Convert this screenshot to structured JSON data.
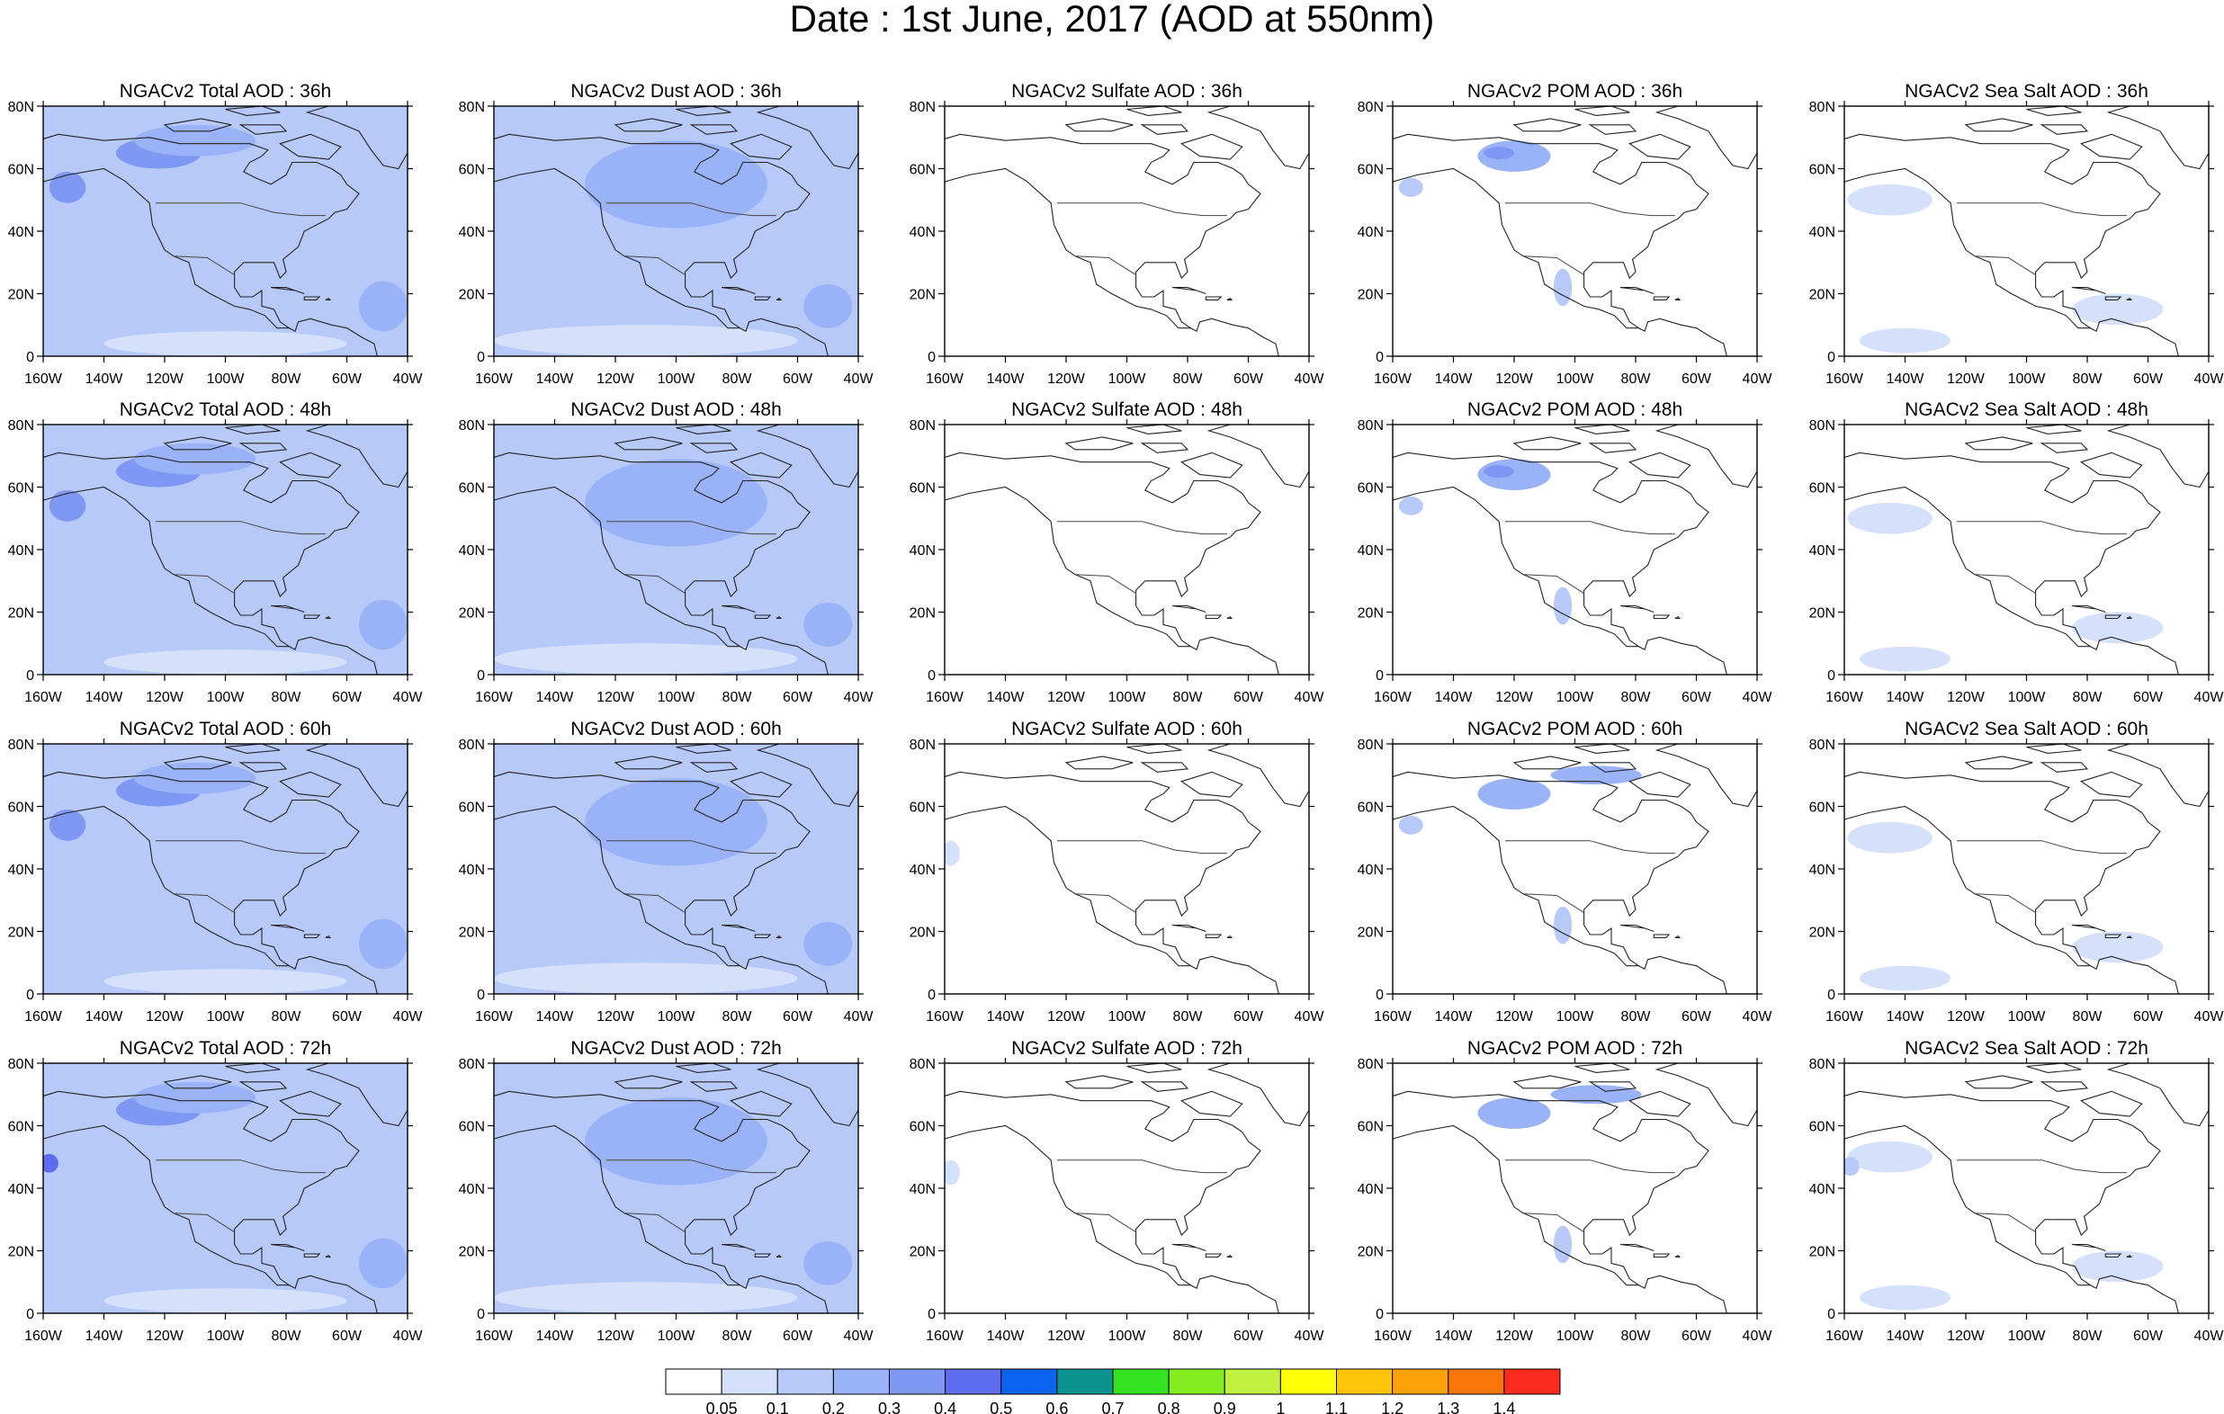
{
  "title": "Date : 1st June, 2017 (AOD at 550nm)",
  "x_ticks": [
    "160W",
    "140W",
    "120W",
    "100W",
    "80W",
    "60W",
    "40W"
  ],
  "y_ticks": [
    "80N",
    "60N",
    "40N",
    "20N",
    "0"
  ],
  "forecast_hours": [
    "36h",
    "48h",
    "60h",
    "72h"
  ],
  "panel_titles": [
    [
      "NGACv2 Total AOD : 36h",
      "NGACv2 Dust AOD : 36h",
      "NGACv2 Sulfate AOD : 36h",
      "NGACv2 POM AOD : 36h",
      "NGACv2 Sea Salt AOD : 36h"
    ],
    [
      "NGACv2 Total AOD : 48h",
      "NGACv2 Dust AOD : 48h",
      "NGACv2 Sulfate AOD : 48h",
      "NGACv2 POM AOD : 48h",
      "NGACv2 Sea Salt AOD : 48h"
    ],
    [
      "NGACv2 Total AOD : 60h",
      "NGACv2 Dust AOD : 60h",
      "NGACv2 Sulfate AOD : 60h",
      "NGACv2 POM AOD : 60h",
      "NGACv2 Sea Salt AOD : 60h"
    ],
    [
      "NGACv2 Total AOD : 72h",
      "NGACv2 Dust AOD : 72h",
      "NGACv2 Sulfate AOD : 72h",
      "NGACv2 POM AOD : 72h",
      "NGACv2 Sea Salt  AOD : 72h"
    ]
  ],
  "colorbar": {
    "labels": [
      "0.05",
      "0.1",
      "0.2",
      "0.3",
      "0.4",
      "0.5",
      "0.6",
      "0.7",
      "0.8",
      "0.9",
      "1",
      "1.1",
      "1.2",
      "1.3",
      "1.4"
    ],
    "colors": [
      "#ffffff",
      "#d5e0fb",
      "#b7c9f9",
      "#9ab3f8",
      "#7f98f3",
      "#5f6df0",
      "#0a64f0",
      "#0b948f",
      "#34e31f",
      "#86ed1e",
      "#c2f23f",
      "#ffff05",
      "#fdc40a",
      "#fda208",
      "#fb7608",
      "#fb2b1e"
    ]
  },
  "chart_data": {
    "type": "heatmap",
    "lon_range": [
      -160,
      -40
    ],
    "lat_range": [
      0,
      80
    ],
    "variables": [
      "Total AOD",
      "Dust AOD",
      "Sulfate AOD",
      "POM AOD",
      "Sea Salt AOD"
    ],
    "levels": [
      0.05,
      0.1,
      0.2,
      0.3,
      0.4,
      0.5,
      0.6,
      0.7,
      0.8,
      0.9,
      1,
      1.1,
      1.2,
      1.3,
      1.4
    ],
    "background_level_by_variable": [
      0.1,
      0.1,
      0.0,
      0.0,
      0.0
    ],
    "features": [
      {
        "var": 0,
        "hours": [
          36,
          48,
          60,
          72
        ],
        "lon": -122,
        "lat": 65,
        "rlon": 14,
        "rlat": 5,
        "level": 0.3
      },
      {
        "var": 0,
        "hours": [
          36,
          48,
          60,
          72
        ],
        "lon": -110,
        "lat": 69,
        "rlon": 20,
        "rlat": 5,
        "level": 0.2
      },
      {
        "var": 0,
        "hours": [
          36,
          48,
          60
        ],
        "lon": -152,
        "lat": 54,
        "rlon": 6,
        "rlat": 5,
        "level": 0.3
      },
      {
        "var": 0,
        "hours": [
          36,
          48,
          60,
          72
        ],
        "lon": -48,
        "lat": 16,
        "rlon": 8,
        "rlat": 8,
        "level": 0.2
      },
      {
        "var": 0,
        "hours": [
          36,
          48,
          60,
          72
        ],
        "lon": -100,
        "lat": 4,
        "rlon": 40,
        "rlat": 4,
        "level": 0.05
      },
      {
        "var": 0,
        "hours": [
          72
        ],
        "lon": -158,
        "lat": 48,
        "rlon": 3,
        "rlat": 3,
        "level": 0.4
      },
      {
        "var": 1,
        "hours": [
          36,
          48,
          60,
          72
        ],
        "lon": -110,
        "lat": 5,
        "rlon": 50,
        "rlat": 5,
        "level": 0.05
      },
      {
        "var": 1,
        "hours": [
          36,
          48,
          60,
          72
        ],
        "lon": -50,
        "lat": 16,
        "rlon": 8,
        "rlat": 7,
        "level": 0.2
      },
      {
        "var": 1,
        "hours": [
          36,
          48,
          60,
          72
        ],
        "lon": -100,
        "lat": 55,
        "rlon": 30,
        "rlat": 14,
        "level": 0.2
      },
      {
        "var": 2,
        "hours": [
          60,
          72
        ],
        "lon": -158,
        "lat": 45,
        "rlon": 3,
        "rlat": 4,
        "level": 0.05
      },
      {
        "var": 3,
        "hours": [
          36,
          48,
          60,
          72
        ],
        "lon": -120,
        "lat": 64,
        "rlon": 12,
        "rlat": 5,
        "level": 0.2
      },
      {
        "var": 3,
        "hours": [
          36,
          48
        ],
        "lon": -125,
        "lat": 65,
        "rlon": 5,
        "rlat": 2,
        "level": 0.3
      },
      {
        "var": 3,
        "hours": [
          36,
          48,
          60
        ],
        "lon": -154,
        "lat": 54,
        "rlon": 4,
        "rlat": 3,
        "level": 0.1
      },
      {
        "var": 3,
        "hours": [
          36,
          48,
          60,
          72
        ],
        "lon": -104,
        "lat": 22,
        "rlon": 3,
        "rlat": 6,
        "level": 0.1
      },
      {
        "var": 3,
        "hours": [
          60,
          72
        ],
        "lon": -93,
        "lat": 70,
        "rlon": 15,
        "rlat": 3,
        "level": 0.2
      },
      {
        "var": 4,
        "hours": [
          36,
          48,
          60,
          72
        ],
        "lon": -145,
        "lat": 50,
        "rlon": 14,
        "rlat": 5,
        "level": 0.05
      },
      {
        "var": 4,
        "hours": [
          36,
          48,
          60,
          72
        ],
        "lon": -70,
        "lat": 15,
        "rlon": 15,
        "rlat": 5,
        "level": 0.05
      },
      {
        "var": 4,
        "hours": [
          36,
          48,
          60,
          72
        ],
        "lon": -140,
        "lat": 5,
        "rlon": 15,
        "rlat": 4,
        "level": 0.05
      },
      {
        "var": 4,
        "hours": [
          72
        ],
        "lon": -158,
        "lat": 47,
        "rlon": 3,
        "rlat": 3,
        "level": 0.1
      }
    ]
  }
}
